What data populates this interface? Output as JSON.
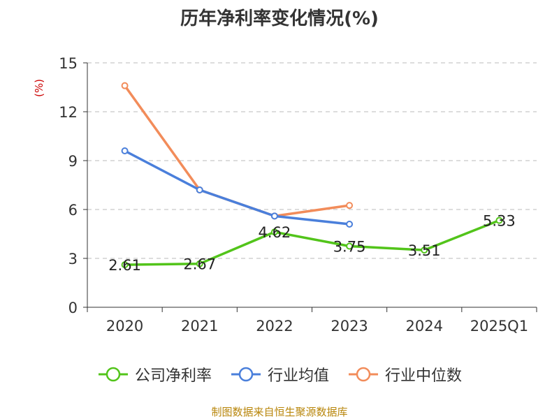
{
  "chart_data": {
    "type": "line",
    "title": "历年净利率变化情况(%)",
    "ylabel": "(%)",
    "xlabel": "",
    "categories": [
      "2020",
      "2021",
      "2022",
      "2023",
      "2024",
      "2025Q1"
    ],
    "ylim": [
      0,
      15
    ],
    "yticks": [
      0,
      3,
      6,
      9,
      12,
      15
    ],
    "grid": true,
    "legend_position": "bottom",
    "series": [
      {
        "name": "公司净利率",
        "color": "#52c41a",
        "values": [
          2.61,
          2.67,
          4.62,
          3.75,
          3.51,
          5.33
        ],
        "labels": [
          "2.61",
          "2.67",
          "4.62",
          "3.75",
          "3.51",
          "5.33"
        ]
      },
      {
        "name": "行业均值",
        "color": "#4a7fdb",
        "values": [
          9.6,
          7.2,
          5.6,
          5.1,
          null,
          null
        ]
      },
      {
        "name": "行业中位数",
        "color": "#f28c5a",
        "values": [
          13.6,
          7.2,
          5.6,
          6.25,
          null,
          null
        ]
      }
    ]
  },
  "source": "制图数据来自恒生聚源数据库"
}
